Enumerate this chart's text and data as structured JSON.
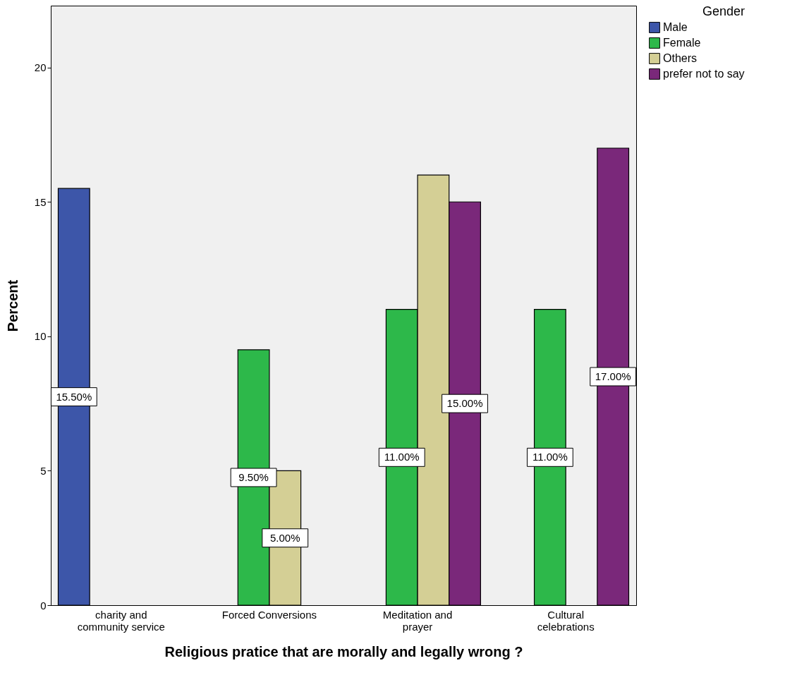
{
  "chart_data": {
    "type": "bar",
    "xlabel": "Religious pratice that are morally and legally wrong ?",
    "ylabel": "Percent",
    "legend_title": "Gender",
    "categories": [
      "charity and community service",
      "Forced Conversions",
      "Meditation and prayer",
      "Cultural celebrations"
    ],
    "series": [
      {
        "name": "Male",
        "color": "#3d56a9",
        "values": [
          15.5,
          null,
          null,
          null
        ],
        "value_labels": [
          "15.50%",
          null,
          null,
          null
        ]
      },
      {
        "name": "Female",
        "color": "#2db84a",
        "values": [
          null,
          9.5,
          11,
          11
        ],
        "value_labels": [
          null,
          "9.50%",
          "11.00%",
          "11.00%"
        ]
      },
      {
        "name": "Others",
        "color": "#d4cf95",
        "values": [
          null,
          5,
          16,
          null
        ],
        "value_labels": [
          null,
          "5.00%",
          null,
          null
        ]
      },
      {
        "name": "prefer not to say",
        "color": "#7a287a",
        "values": [
          null,
          null,
          15,
          17
        ],
        "value_labels": [
          null,
          null,
          "15.00%",
          "17.00%"
        ]
      }
    ],
    "ylim": [
      0,
      22.3
    ],
    "yticks": [
      0,
      5,
      10,
      15,
      20
    ],
    "grid": false,
    "legend": "top right"
  }
}
